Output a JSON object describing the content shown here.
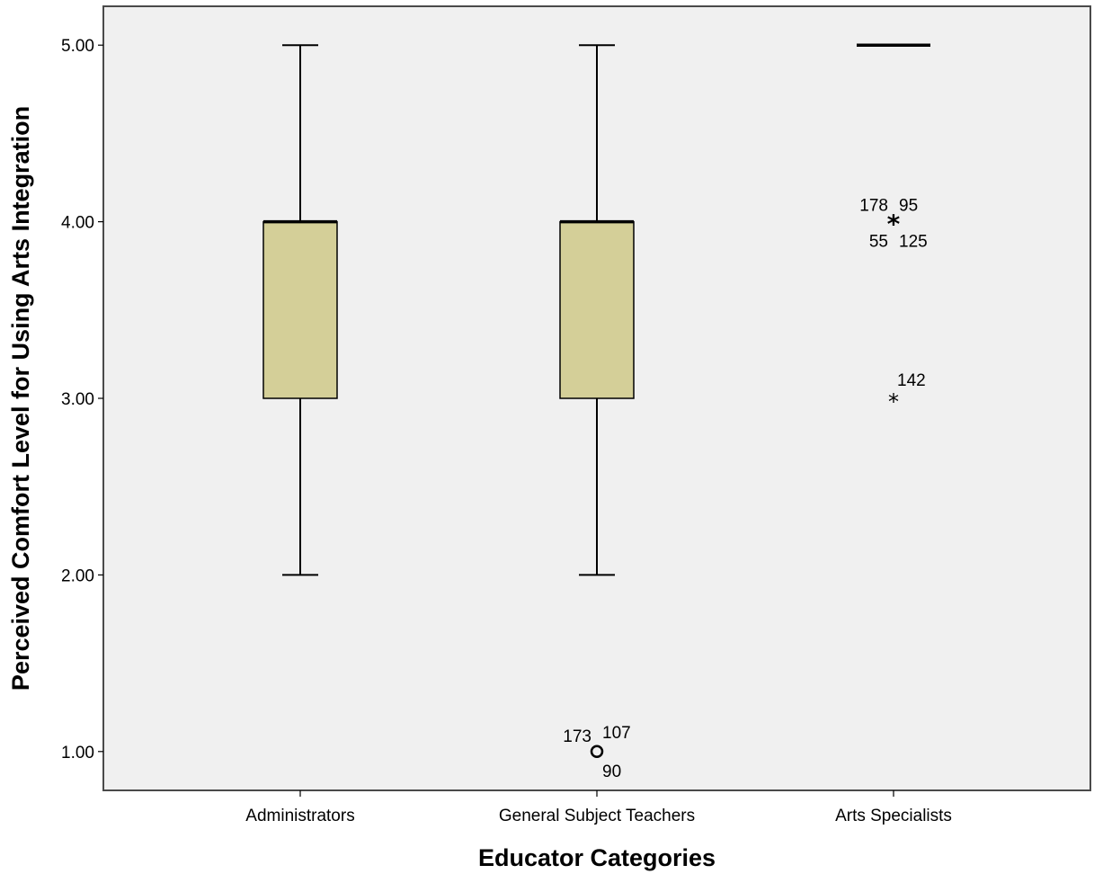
{
  "chart_data": {
    "type": "boxplot",
    "xlabel": "Educator Categories",
    "ylabel": "Perceived Comfort Level for Using Arts Integration",
    "ylim": [
      0.78,
      5.22
    ],
    "yticks": [
      1.0,
      2.0,
      3.0,
      4.0,
      5.0
    ],
    "ytick_labels": [
      "1.00",
      "2.00",
      "3.00",
      "4.00",
      "5.00"
    ],
    "grid": false,
    "colors": {
      "box_fill": "#d4cf98",
      "plot_bg": "#f0f0f0",
      "line": "#000000"
    },
    "categories": [
      "Administrators",
      "General Subject Teachers",
      "Arts Specialists"
    ],
    "boxes": [
      {
        "category": "Administrators",
        "whisker_low": 2.0,
        "q1": 3.0,
        "median": 4.0,
        "q3": 4.0,
        "whisker_high": 5.0,
        "outliers": []
      },
      {
        "category": "General Subject Teachers",
        "whisker_low": 2.0,
        "q1": 3.0,
        "median": 4.0,
        "q3": 4.0,
        "whisker_high": 5.0,
        "outliers": [
          {
            "value": 1.0,
            "marker": "circle",
            "labels": [
              "173",
              "107",
              "90"
            ]
          }
        ]
      },
      {
        "category": "Arts Specialists",
        "whisker_low": 5.0,
        "q1": 5.0,
        "median": 5.0,
        "q3": 5.0,
        "whisker_high": 5.0,
        "outliers": [
          {
            "value": 4.0,
            "marker": "star",
            "labels": [
              "178",
              "95",
              "55",
              "125"
            ]
          },
          {
            "value": 3.0,
            "marker": "star",
            "labels": [
              "142"
            ]
          }
        ]
      }
    ]
  }
}
